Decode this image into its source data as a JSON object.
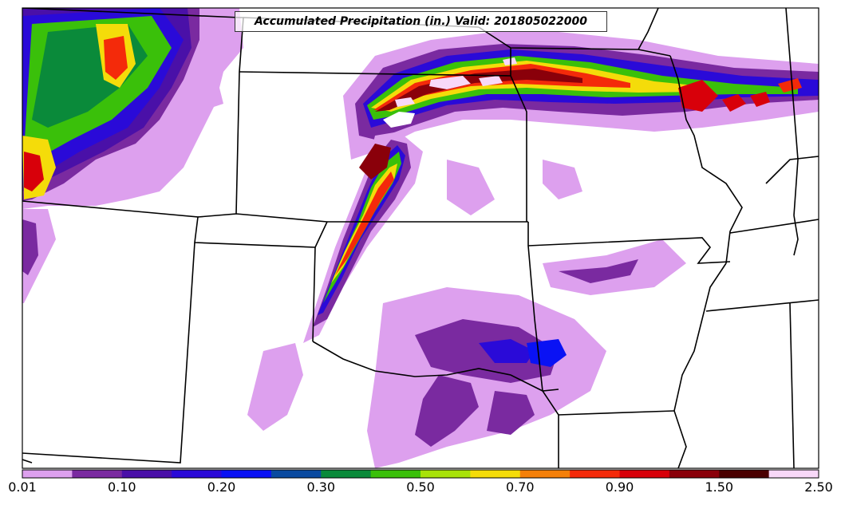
{
  "title": "Accumulated Precipitation (in.) Valid: 201805022000",
  "colorbar": {
    "colors": [
      "#dda0ee",
      "#7a2aa0",
      "#4a10a8",
      "#2a0ad8",
      "#0a12f4",
      "#0a4aa0",
      "#0a8a3a",
      "#3ac00a",
      "#a8e20a",
      "#f4dc0a",
      "#f4800a",
      "#f42a0a",
      "#d8000a",
      "#8a000a",
      "#4a0000",
      "#f8d8f8"
    ],
    "tick_labels": [
      "0.01",
      "0.10",
      "0.20",
      "0.30",
      "0.50",
      "0.70",
      "0.90",
      "1.50",
      "2.50"
    ]
  }
}
